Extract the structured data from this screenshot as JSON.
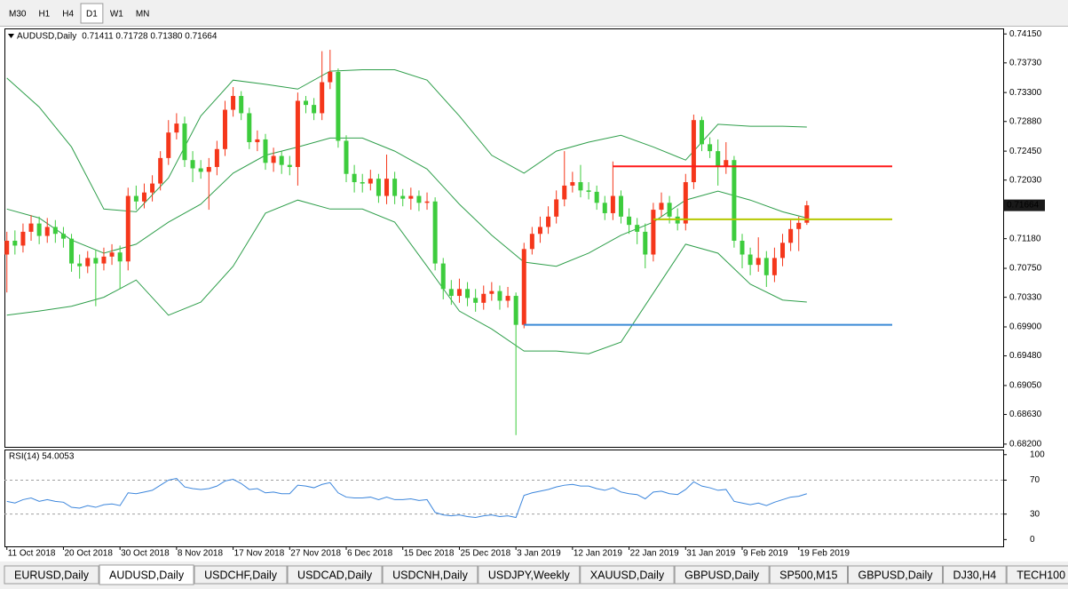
{
  "toolbar": {
    "buttons": [
      "M30",
      "H1",
      "H4",
      "D1",
      "W1",
      "MN"
    ],
    "active": 3
  },
  "chart_data": [
    {
      "type": "candlestick",
      "title": "AUDUSD,Daily",
      "ohlc_text": "0.71411 0.71728 0.71380 0.71664",
      "categories": [
        "11 Oct 2018",
        null,
        null,
        null,
        null,
        null,
        null,
        "20 Oct 2018",
        null,
        null,
        null,
        null,
        null,
        null,
        "30 Oct 2018",
        null,
        null,
        null,
        null,
        null,
        null,
        "8 Nov 2018",
        null,
        null,
        null,
        null,
        null,
        null,
        "17 Nov 2018",
        null,
        null,
        null,
        null,
        null,
        null,
        "27 Nov 2018",
        null,
        null,
        null,
        null,
        null,
        null,
        "6 Dec 2018",
        null,
        null,
        null,
        null,
        null,
        null,
        "15 Dec 2018",
        null,
        null,
        null,
        null,
        null,
        null,
        "25 Dec 2018",
        null,
        null,
        null,
        null,
        null,
        null,
        "3 Jan 2019",
        null,
        null,
        null,
        null,
        null,
        null,
        "12 Jan 2019",
        null,
        null,
        null,
        null,
        null,
        null,
        "22 Jan 2019",
        null,
        null,
        null,
        null,
        null,
        null,
        "31 Jan 2019",
        null,
        null,
        null,
        null,
        null,
        null,
        "9 Feb 2019",
        null,
        null,
        null,
        null,
        null,
        null,
        "19 Feb 2019",
        null
      ],
      "open": [
        0.7095,
        0.7115,
        0.7108,
        0.7128,
        0.714,
        0.7122,
        0.7135,
        0.7125,
        0.7118,
        0.7082,
        0.7078,
        0.709,
        0.7082,
        0.7092,
        0.7098,
        0.7085,
        0.718,
        0.7172,
        0.7185,
        0.7198,
        0.7235,
        0.7272,
        0.7285,
        0.7232,
        0.722,
        0.7215,
        0.7222,
        0.7248,
        0.7305,
        0.7325,
        0.73,
        0.7258,
        0.7262,
        0.7228,
        0.7238,
        0.7225,
        0.7222,
        0.7318,
        0.7312,
        0.73,
        0.7345,
        0.736,
        0.726,
        0.7212,
        0.72,
        0.7198,
        0.7205,
        0.718,
        0.7205,
        0.718,
        0.7176,
        0.718,
        0.717,
        0.7172,
        0.7082,
        0.7045,
        0.7035,
        0.7045,
        0.7032,
        0.7025,
        0.7038,
        0.7042,
        0.7028,
        0.7035,
        0.6993,
        0.7103,
        0.7125,
        0.7135,
        0.715,
        0.7175,
        0.7195,
        0.72,
        0.7188,
        0.7186,
        0.717,
        0.7155,
        0.718,
        0.715,
        0.7138,
        0.7128,
        0.7095,
        0.716,
        0.717,
        0.715,
        0.714,
        0.72,
        0.729,
        0.7255,
        0.7245,
        0.7222,
        0.7232,
        0.7115,
        0.7095,
        0.708,
        0.709,
        0.7065,
        0.709,
        0.7112,
        0.7132,
        0.71411
      ],
      "high": [
        0.7128,
        0.713,
        0.714,
        0.7152,
        0.715,
        0.7148,
        0.7145,
        0.7135,
        0.7125,
        0.7095,
        0.71,
        0.7102,
        0.7105,
        0.711,
        0.7108,
        0.7192,
        0.7195,
        0.7198,
        0.721,
        0.7245,
        0.729,
        0.73,
        0.7295,
        0.7245,
        0.7232,
        0.7235,
        0.726,
        0.7318,
        0.7338,
        0.7332,
        0.7308,
        0.7275,
        0.727,
        0.725,
        0.7245,
        0.7238,
        0.733,
        0.7325,
        0.7322,
        0.739,
        0.7392,
        0.7365,
        0.7268,
        0.7225,
        0.7212,
        0.7218,
        0.7212,
        0.724,
        0.7215,
        0.719,
        0.7192,
        0.7188,
        0.7185,
        0.7178,
        0.709,
        0.7058,
        0.706,
        0.7055,
        0.7045,
        0.705,
        0.7055,
        0.705,
        0.7048,
        0.704,
        0.7112,
        0.7135,
        0.715,
        0.7165,
        0.7188,
        0.7245,
        0.7215,
        0.7225,
        0.72,
        0.7195,
        0.718,
        0.723,
        0.7188,
        0.7162,
        0.7148,
        0.714,
        0.717,
        0.7185,
        0.718,
        0.7162,
        0.7212,
        0.7298,
        0.7295,
        0.7265,
        0.7262,
        0.7258,
        0.7238,
        0.7125,
        0.7105,
        0.712,
        0.71,
        0.7105,
        0.7125,
        0.7145,
        0.715,
        0.71728
      ],
      "low": [
        0.704,
        0.7095,
        0.7098,
        0.7115,
        0.711,
        0.7112,
        0.7112,
        0.7105,
        0.707,
        0.706,
        0.7068,
        0.702,
        0.7072,
        0.708,
        0.7045,
        0.7072,
        0.716,
        0.7162,
        0.7172,
        0.7188,
        0.7225,
        0.7262,
        0.7222,
        0.72,
        0.7205,
        0.716,
        0.721,
        0.7238,
        0.7295,
        0.729,
        0.7248,
        0.7245,
        0.7218,
        0.7215,
        0.7212,
        0.721,
        0.7195,
        0.73,
        0.729,
        0.729,
        0.7335,
        0.725,
        0.72,
        0.7185,
        0.7185,
        0.7188,
        0.717,
        0.7168,
        0.7168,
        0.7165,
        0.716,
        0.7158,
        0.716,
        0.7072,
        0.703,
        0.7022,
        0.7025,
        0.702,
        0.7012,
        0.7015,
        0.7028,
        0.7015,
        0.7018,
        0.6833,
        0.6988,
        0.7095,
        0.7112,
        0.7125,
        0.714,
        0.7165,
        0.7185,
        0.7178,
        0.7175,
        0.716,
        0.7145,
        0.7145,
        0.714,
        0.7125,
        0.711,
        0.7075,
        0.7085,
        0.715,
        0.714,
        0.713,
        0.713,
        0.719,
        0.7245,
        0.7235,
        0.7195,
        0.7212,
        0.7105,
        0.7075,
        0.7065,
        0.707,
        0.7048,
        0.7055,
        0.7078,
        0.71,
        0.71,
        0.7138
      ],
      "close": [
        0.7115,
        0.7108,
        0.7128,
        0.714,
        0.7122,
        0.7135,
        0.7125,
        0.7118,
        0.7082,
        0.7078,
        0.709,
        0.7082,
        0.7092,
        0.7098,
        0.7085,
        0.718,
        0.7172,
        0.7185,
        0.7198,
        0.7235,
        0.7272,
        0.7285,
        0.7232,
        0.722,
        0.7215,
        0.7222,
        0.7248,
        0.7305,
        0.7325,
        0.73,
        0.7258,
        0.7262,
        0.7228,
        0.7238,
        0.7225,
        0.7222,
        0.7318,
        0.7312,
        0.73,
        0.7345,
        0.736,
        0.726,
        0.7212,
        0.72,
        0.7198,
        0.7205,
        0.718,
        0.7205,
        0.718,
        0.7176,
        0.718,
        0.717,
        0.7172,
        0.7082,
        0.7045,
        0.7035,
        0.7045,
        0.7032,
        0.7025,
        0.7038,
        0.7042,
        0.7028,
        0.7035,
        0.6993,
        0.7103,
        0.7125,
        0.7135,
        0.715,
        0.7175,
        0.7195,
        0.72,
        0.7188,
        0.7186,
        0.717,
        0.7155,
        0.718,
        0.715,
        0.7138,
        0.7128,
        0.7095,
        0.716,
        0.717,
        0.715,
        0.714,
        0.72,
        0.729,
        0.7255,
        0.7245,
        0.7222,
        0.7232,
        0.7115,
        0.7095,
        0.708,
        0.709,
        0.7065,
        0.709,
        0.7112,
        0.7132,
        0.7141,
        0.71664
      ],
      "up_color": "#f5371b",
      "down_color": "#3dcc3d",
      "xlim": [
        -0.3,
        123.3
      ],
      "ylim": [
        0.6816,
        0.7423
      ],
      "yticks": [
        {
          "value": 0.7415,
          "label": "0.74150"
        },
        {
          "value": 0.7373,
          "label": "0.73730"
        },
        {
          "value": 0.733,
          "label": "0.73300"
        },
        {
          "value": 0.7288,
          "label": "0.72880"
        },
        {
          "value": 0.7245,
          "label": "0.72450"
        },
        {
          "value": 0.7203,
          "label": "0.72030"
        },
        {
          "value": 0.7118,
          "label": "0.71180"
        },
        {
          "value": 0.7075,
          "label": "0.70750"
        },
        {
          "value": 0.7033,
          "label": "0.70330"
        },
        {
          "value": 0.699,
          "label": "0.69900"
        },
        {
          "value": 0.6948,
          "label": "0.69480"
        },
        {
          "value": 0.6905,
          "label": "0.69050"
        },
        {
          "value": 0.6863,
          "label": "0.68630"
        },
        {
          "value": 0.682,
          "label": "0.68200"
        }
      ],
      "last_price": {
        "value": 0.71664,
        "label": "0.71664"
      },
      "bands": [
        {
          "x": [
            0,
            4,
            8,
            12,
            16,
            20,
            24,
            28,
            32,
            36,
            40,
            44,
            48,
            52,
            56,
            60,
            64,
            68,
            72,
            76,
            80,
            84,
            88,
            92,
            96,
            99
          ],
          "values": [
            0.7351,
            0.7309,
            0.7251,
            0.7161,
            0.7157,
            0.7206,
            0.7296,
            0.7348,
            0.7342,
            0.7335,
            0.7361,
            0.7363,
            0.7363,
            0.7348,
            0.7296,
            0.7239,
            0.7213,
            0.7245,
            0.7258,
            0.7268,
            0.7251,
            0.7232,
            0.7284,
            0.7281,
            0.7281,
            0.728
          ],
          "color": "#2e9e4a"
        },
        {
          "x": [
            0,
            4,
            8,
            12,
            16,
            20,
            24,
            28,
            32,
            36,
            40,
            44,
            48,
            52,
            56,
            60,
            64,
            68,
            72,
            76,
            80,
            84,
            88,
            92,
            96,
            99
          ],
          "values": [
            0.7161,
            0.7148,
            0.7116,
            0.7097,
            0.711,
            0.7142,
            0.7168,
            0.7213,
            0.7239,
            0.7251,
            0.7264,
            0.7264,
            0.7245,
            0.7219,
            0.7168,
            0.7123,
            0.7084,
            0.7078,
            0.7097,
            0.7123,
            0.7142,
            0.7174,
            0.7187,
            0.7174,
            0.7157,
            0.7148
          ],
          "color": "#2e9e4a"
        },
        {
          "x": [
            0,
            4,
            8,
            12,
            16,
            20,
            24,
            28,
            32,
            36,
            40,
            44,
            48,
            52,
            56,
            60,
            64,
            68,
            72,
            76,
            80,
            84,
            88,
            92,
            96,
            99
          ],
          "values": [
            0.7007,
            0.7013,
            0.702,
            0.7033,
            0.7058,
            0.7007,
            0.7026,
            0.7078,
            0.7155,
            0.7174,
            0.7161,
            0.7161,
            0.7142,
            0.7078,
            0.7013,
            0.6987,
            0.6955,
            0.6955,
            0.6951,
            0.6968,
            0.7039,
            0.711,
            0.7097,
            0.7052,
            0.7029,
            0.7026
          ],
          "color": "#2e9e4a"
        }
      ],
      "levels": [
        {
          "value": 0.7223,
          "x": 75,
          "color": "#ff1a1a"
        },
        {
          "value": 0.7146,
          "x": 80,
          "color": "#b4c800"
        },
        {
          "value": 0.6993,
          "x": 64,
          "color": "#3a8ad6"
        }
      ]
    },
    {
      "type": "line",
      "title": "RSI(14) 54.0053",
      "values": [
        45,
        43,
        47,
        49,
        45,
        47,
        45,
        44,
        38,
        37,
        40,
        38,
        41,
        42,
        40,
        55,
        54,
        56,
        58,
        64,
        70,
        72,
        62,
        60,
        59,
        60,
        63,
        69,
        71,
        66,
        59,
        60,
        55,
        56,
        54,
        54,
        64,
        63,
        61,
        65,
        67,
        55,
        50,
        49,
        49,
        50,
        47,
        50,
        47,
        47,
        48,
        46,
        47,
        32,
        29,
        28,
        29,
        27,
        26,
        28,
        29,
        27,
        28,
        26,
        52,
        55,
        57,
        59,
        62,
        64,
        65,
        63,
        63,
        60,
        58,
        61,
        56,
        54,
        53,
        48,
        56,
        57,
        54,
        53,
        59,
        68,
        63,
        61,
        58,
        59,
        45,
        43,
        41,
        43,
        40,
        44,
        47,
        50,
        51,
        54.0053
      ],
      "color": "#3c86dc",
      "ylim": [
        -8,
        105
      ],
      "yticks": [
        100,
        70,
        30,
        0
      ],
      "levels": [
        70,
        30
      ]
    }
  ],
  "tabs": {
    "items": [
      "EURUSD,Daily",
      "AUDUSD,Daily",
      "USDCHF,Daily",
      "USDCAD,Daily",
      "USDCNH,Daily",
      "USDJPY,Weekly",
      "XAUUSD,Daily",
      "GBPUSD,Daily",
      "SP500,M15",
      "GBPUSD,Daily",
      "DJ30,H4",
      "TECH100"
    ],
    "active": 1
  }
}
